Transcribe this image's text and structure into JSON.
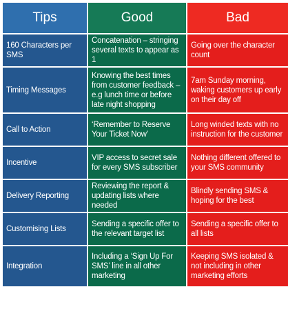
{
  "headers": {
    "tips": "Tips",
    "good": "Good",
    "bad": "Bad"
  },
  "rows": [
    {
      "tip": "160 Characters per SMS",
      "good": "Concatenation – stringing several texts to appear as 1",
      "bad": "Going over the character count"
    },
    {
      "tip": "Timing Messages",
      "good": "Knowing the best times from customer feedback – e.g lunch time or before late night shopping",
      "bad": "7am Sunday morning, waking customers up early on their day off"
    },
    {
      "tip": "Call to Action",
      "good": "‘Remember to Reserve Your Ticket Now’",
      "bad": "Long winded texts with no instruction for the customer"
    },
    {
      "tip": "Incentive",
      "good": "VIP access to secret sale for every SMS subscriber",
      "bad": "Nothing different offered to your SMS community"
    },
    {
      "tip": "Delivery Reporting",
      "good": "Reviewing the report & updating lists where needed",
      "bad": "Blindly sending SMS & hoping for the best"
    },
    {
      "tip": "Customising Lists",
      "good": "Sending a specific offer to the relevant target list",
      "bad": "Sending a specific offer to all lists"
    },
    {
      "tip": "Integration",
      "good": "Including a ‘Sign Up For SMS’ line in all other marketing",
      "bad": "Keeping SMS isolated & not including in other marketing efforts"
    }
  ],
  "colors": {
    "tips": "#24578f",
    "good": "#0b6a4a",
    "bad": "#e41e1c"
  }
}
